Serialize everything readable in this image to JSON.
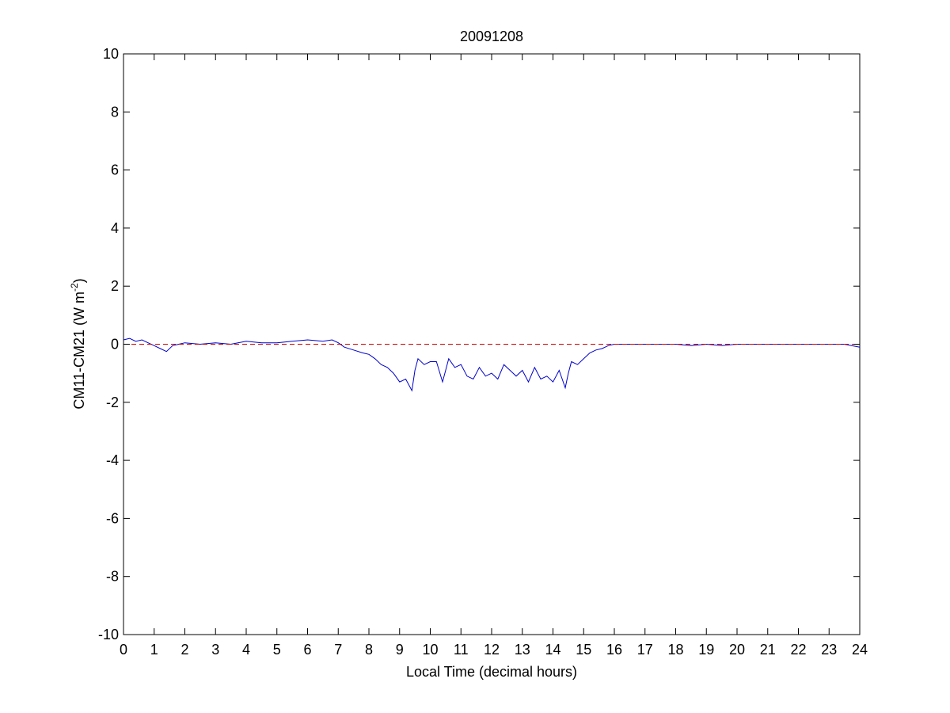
{
  "chart_data": {
    "type": "line",
    "title": "20091208",
    "xlabel": "Local Time (decimal hours)",
    "ylabel": {
      "base": "CM11-CM21 (W m",
      "superscript": "-2",
      "close": ")"
    },
    "xlim": [
      0,
      24
    ],
    "ylim": [
      -10,
      10
    ],
    "xticks": [
      0,
      1,
      2,
      3,
      4,
      5,
      6,
      7,
      8,
      9,
      10,
      11,
      12,
      13,
      14,
      15,
      16,
      17,
      18,
      19,
      20,
      21,
      22,
      23,
      24
    ],
    "yticks": [
      -10,
      -8,
      -6,
      -4,
      -2,
      0,
      2,
      4,
      6,
      8,
      10
    ],
    "grid": false,
    "series": [
      {
        "style": "solid",
        "color": "#0000cc",
        "x": [
          0,
          0.2,
          0.4,
          0.6,
          0.8,
          1.0,
          1.2,
          1.4,
          1.6,
          1.8,
          2.0,
          2.5,
          3.0,
          3.5,
          4.0,
          4.5,
          5.0,
          5.5,
          6.0,
          6.5,
          6.8,
          7.0,
          7.2,
          7.5,
          7.8,
          8.0,
          8.2,
          8.4,
          8.6,
          8.8,
          9.0,
          9.2,
          9.4,
          9.5,
          9.6,
          9.8,
          10.0,
          10.2,
          10.4,
          10.5,
          10.6,
          10.8,
          11.0,
          11.2,
          11.4,
          11.6,
          11.8,
          12.0,
          12.2,
          12.4,
          12.6,
          12.8,
          13.0,
          13.2,
          13.4,
          13.6,
          13.8,
          14.0,
          14.2,
          14.4,
          14.5,
          14.6,
          14.8,
          15.0,
          15.2,
          15.4,
          15.6,
          15.8,
          16.0,
          16.5,
          17.0,
          17.5,
          18.0,
          18.5,
          19.0,
          19.5,
          20.0,
          20.5,
          21.0,
          21.5,
          22.0,
          22.5,
          23.0,
          23.5,
          24.0
        ],
        "y": [
          0.15,
          0.2,
          0.1,
          0.15,
          0.05,
          -0.05,
          -0.15,
          -0.25,
          -0.05,
          0.0,
          0.05,
          0.0,
          0.05,
          0.0,
          0.1,
          0.05,
          0.05,
          0.1,
          0.15,
          0.1,
          0.15,
          0.05,
          -0.1,
          -0.2,
          -0.3,
          -0.35,
          -0.5,
          -0.7,
          -0.8,
          -1.0,
          -1.3,
          -1.2,
          -1.6,
          -0.9,
          -0.5,
          -0.7,
          -0.6,
          -0.6,
          -1.3,
          -0.9,
          -0.5,
          -0.8,
          -0.7,
          -1.1,
          -1.2,
          -0.8,
          -1.1,
          -1.0,
          -1.2,
          -0.7,
          -0.9,
          -1.1,
          -0.9,
          -1.3,
          -0.8,
          -1.2,
          -1.1,
          -1.3,
          -0.9,
          -1.5,
          -1.0,
          -0.6,
          -0.7,
          -0.5,
          -0.3,
          -0.2,
          -0.15,
          -0.05,
          0.0,
          0.0,
          0.0,
          0.0,
          0.0,
          -0.05,
          0.0,
          -0.05,
          0.0,
          0.0,
          0.0,
          0.0,
          0.0,
          0.0,
          0.0,
          0.0,
          -0.1
        ]
      },
      {
        "style": "dashed",
        "color": "#cc0000",
        "x": [
          0,
          24
        ],
        "y": [
          0,
          0
        ]
      }
    ]
  }
}
